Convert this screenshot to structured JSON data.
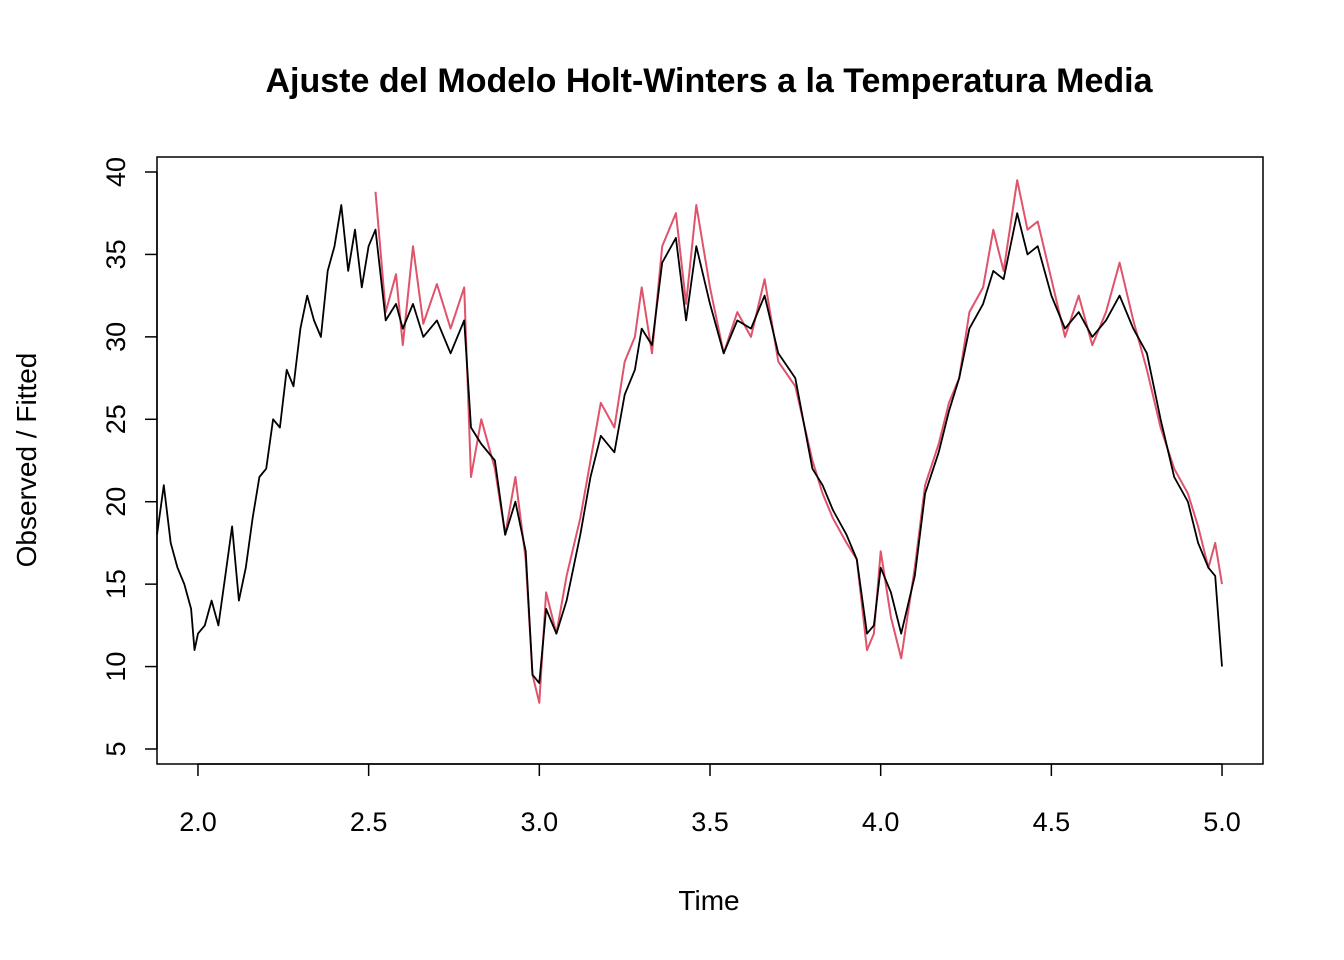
{
  "chart_data": {
    "type": "line",
    "title": "Ajuste del Modelo Holt-Winters a la Temperatura Media",
    "xlabel": "Time",
    "ylabel": "Observed / Fitted",
    "xlim": [
      1.88,
      5.12
    ],
    "ylim": [
      5,
      40
    ],
    "x_ticks": [
      2.0,
      2.5,
      3.0,
      3.5,
      4.0,
      4.5,
      5.0
    ],
    "x_tick_labels": [
      "2.0",
      "2.5",
      "3.0",
      "3.5",
      "4.0",
      "4.5",
      "5.0"
    ],
    "y_ticks": [
      5,
      10,
      15,
      20,
      25,
      30,
      35,
      40
    ],
    "y_tick_labels": [
      "5",
      "10",
      "15",
      "20",
      "25",
      "30",
      "35",
      "40"
    ],
    "grid": false,
    "legend": "none",
    "series": [
      {
        "color": "#DF536B",
        "x": [
          2.52,
          2.55,
          2.58,
          2.6,
          2.63,
          2.66,
          2.7,
          2.74,
          2.78,
          2.8,
          2.83,
          2.87,
          2.9,
          2.93,
          2.96,
          2.98,
          3.0,
          3.02,
          3.05,
          3.08,
          3.12,
          3.15,
          3.18,
          3.22,
          3.25,
          3.28,
          3.3,
          3.33,
          3.36,
          3.4,
          3.43,
          3.46,
          3.5,
          3.54,
          3.58,
          3.62,
          3.66,
          3.7,
          3.75,
          3.8,
          3.83,
          3.86,
          3.9,
          3.93,
          3.96,
          3.98,
          4.0,
          4.03,
          4.06,
          4.1,
          4.13,
          4.17,
          4.2,
          4.23,
          4.26,
          4.3,
          4.33,
          4.36,
          4.4,
          4.43,
          4.46,
          4.5,
          4.54,
          4.58,
          4.62,
          4.66,
          4.7,
          4.74,
          4.78,
          4.82,
          4.86,
          4.9,
          4.93,
          4.96,
          4.98,
          5.0
        ],
        "y": [
          38.8,
          31.5,
          33.8,
          29.5,
          35.5,
          30.8,
          33.2,
          30.5,
          33.0,
          21.5,
          25.0,
          22.0,
          18.0,
          21.5,
          16.5,
          9.5,
          7.8,
          14.5,
          12.0,
          15.5,
          19.0,
          22.5,
          26.0,
          24.5,
          28.5,
          30.0,
          33.0,
          29.0,
          35.5,
          37.5,
          32.0,
          38.0,
          33.0,
          29.0,
          31.5,
          30.0,
          33.5,
          28.5,
          27.0,
          22.5,
          20.5,
          19.0,
          17.5,
          16.5,
          11.0,
          12.0,
          17.0,
          13.0,
          10.5,
          16.0,
          21.0,
          23.5,
          26.0,
          27.5,
          31.5,
          33.0,
          36.5,
          34.0,
          39.5,
          36.5,
          37.0,
          33.5,
          30.0,
          32.5,
          29.5,
          31.5,
          34.5,
          31.0,
          28.0,
          24.5,
          22.0,
          20.5,
          18.5,
          16.0,
          17.5,
          15.0
        ]
      },
      {
        "color": "#000000",
        "x": [
          1.88,
          1.9,
          1.92,
          1.94,
          1.96,
          1.98,
          1.99,
          2.0,
          2.02,
          2.04,
          2.06,
          2.08,
          2.1,
          2.12,
          2.14,
          2.16,
          2.18,
          2.2,
          2.22,
          2.24,
          2.26,
          2.28,
          2.3,
          2.32,
          2.34,
          2.36,
          2.38,
          2.4,
          2.42,
          2.44,
          2.46,
          2.48,
          2.5,
          2.52,
          2.55,
          2.58,
          2.6,
          2.63,
          2.66,
          2.7,
          2.74,
          2.78,
          2.8,
          2.83,
          2.87,
          2.9,
          2.93,
          2.96,
          2.98,
          3.0,
          3.02,
          3.05,
          3.08,
          3.12,
          3.15,
          3.18,
          3.22,
          3.25,
          3.28,
          3.3,
          3.33,
          3.36,
          3.4,
          3.43,
          3.46,
          3.5,
          3.54,
          3.58,
          3.62,
          3.66,
          3.7,
          3.75,
          3.8,
          3.83,
          3.86,
          3.9,
          3.93,
          3.96,
          3.98,
          4.0,
          4.03,
          4.06,
          4.1,
          4.13,
          4.17,
          4.2,
          4.23,
          4.26,
          4.3,
          4.33,
          4.36,
          4.4,
          4.43,
          4.46,
          4.5,
          4.54,
          4.58,
          4.62,
          4.66,
          4.7,
          4.74,
          4.78,
          4.82,
          4.86,
          4.9,
          4.93,
          4.96,
          4.98,
          5.0
        ],
        "y": [
          18.0,
          21.0,
          17.5,
          16.0,
          15.0,
          13.5,
          11.0,
          12.0,
          12.5,
          14.0,
          12.5,
          15.5,
          18.5,
          14.0,
          16.0,
          19.0,
          21.5,
          22.0,
          25.0,
          24.5,
          28.0,
          27.0,
          30.5,
          32.5,
          31.0,
          30.0,
          34.0,
          35.5,
          38.0,
          34.0,
          36.5,
          33.0,
          35.5,
          36.5,
          31.0,
          32.0,
          30.5,
          32.0,
          30.0,
          31.0,
          29.0,
          31.0,
          24.5,
          23.5,
          22.5,
          18.0,
          20.0,
          17.0,
          9.5,
          9.0,
          13.5,
          12.0,
          14.0,
          18.0,
          21.5,
          24.0,
          23.0,
          26.5,
          28.0,
          30.5,
          29.5,
          34.5,
          36.0,
          31.0,
          35.5,
          32.0,
          29.0,
          31.0,
          30.5,
          32.5,
          29.0,
          27.5,
          22.0,
          21.0,
          19.5,
          18.0,
          16.5,
          12.0,
          12.5,
          16.0,
          14.5,
          12.0,
          15.5,
          20.5,
          23.0,
          25.5,
          27.5,
          30.5,
          32.0,
          34.0,
          33.5,
          37.5,
          35.0,
          35.5,
          32.5,
          30.5,
          31.5,
          30.0,
          31.0,
          32.5,
          30.5,
          29.0,
          25.0,
          21.5,
          20.0,
          17.5,
          16.0,
          15.5,
          10.0
        ]
      }
    ]
  }
}
